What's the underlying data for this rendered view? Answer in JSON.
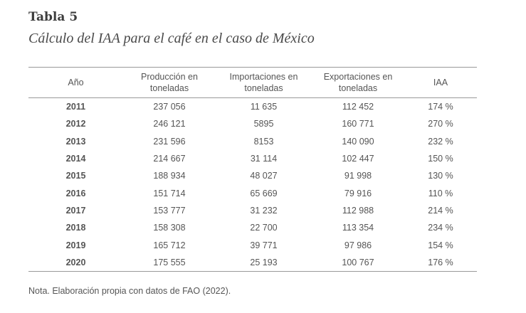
{
  "title": "Tabla 5",
  "subtitle": "Cálculo del IAA para el café en el caso de México",
  "table": {
    "headers": [
      {
        "line1": "Año",
        "line2": ""
      },
      {
        "line1": "Producción en",
        "line2": "toneladas"
      },
      {
        "line1": "Importaciones en",
        "line2": "toneladas"
      },
      {
        "line1": "Exportaciones en",
        "line2": "toneladas"
      },
      {
        "line1": "IAA",
        "line2": ""
      }
    ],
    "rows": [
      [
        "2011",
        "237 056",
        "11 635",
        "112 452",
        "174 %"
      ],
      [
        "2012",
        "246 121",
        "5895",
        "160 771",
        "270 %"
      ],
      [
        "2013",
        "231 596",
        "8153",
        "140 090",
        "232 %"
      ],
      [
        "2014",
        "214 667",
        "31 114",
        "102 447",
        "150 %"
      ],
      [
        "2015",
        "188 934",
        "48 027",
        "91 998",
        "130 %"
      ],
      [
        "2016",
        "151 714",
        "65 669",
        "79 916",
        "110 %"
      ],
      [
        "2017",
        "153 777",
        "31 232",
        "112 988",
        "214 %"
      ],
      [
        "2018",
        "158 308",
        "22 700",
        "113 354",
        "234 %"
      ],
      [
        "2019",
        "165 712",
        "39 771",
        "97 986",
        "154 %"
      ],
      [
        "2020",
        "175 555",
        "25 193",
        "100 767",
        "176 %"
      ]
    ]
  },
  "note": "Nota. Elaboración propia con datos de FAO (2022)."
}
